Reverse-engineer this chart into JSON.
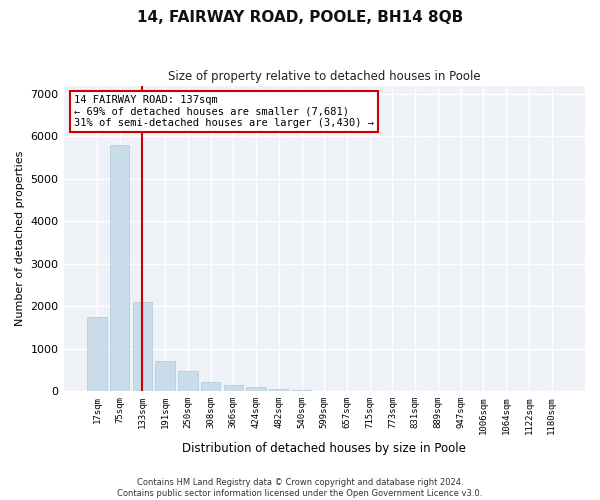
{
  "title": "14, FAIRWAY ROAD, POOLE, BH14 8QB",
  "subtitle": "Size of property relative to detached houses in Poole",
  "xlabel": "Distribution of detached houses by size in Poole",
  "ylabel": "Number of detached properties",
  "categories": [
    "17sqm",
    "75sqm",
    "133sqm",
    "191sqm",
    "250sqm",
    "308sqm",
    "366sqm",
    "424sqm",
    "482sqm",
    "540sqm",
    "599sqm",
    "657sqm",
    "715sqm",
    "773sqm",
    "831sqm",
    "889sqm",
    "947sqm",
    "1006sqm",
    "1064sqm",
    "1122sqm",
    "1180sqm"
  ],
  "values": [
    1750,
    5800,
    2100,
    700,
    480,
    220,
    150,
    100,
    60,
    30,
    10,
    5,
    3,
    2,
    1,
    1,
    0,
    0,
    0,
    0,
    0
  ],
  "bar_color": "#c9dcea",
  "bar_edge_color": "#aec8dc",
  "highlight_index": 2,
  "highlight_line_color": "#cc0000",
  "annotation_text": "14 FAIRWAY ROAD: 137sqm\n← 69% of detached houses are smaller (7,681)\n31% of semi-detached houses are larger (3,430) →",
  "annotation_box_color": "#ffffff",
  "annotation_box_edge": "#cc0000",
  "bg_color": "#eef2f7",
  "grid_color": "#ffffff",
  "ylim": [
    0,
    7200
  ],
  "yticks": [
    0,
    1000,
    2000,
    3000,
    4000,
    5000,
    6000,
    7000
  ],
  "footer_line1": "Contains HM Land Registry data © Crown copyright and database right 2024.",
  "footer_line2": "Contains public sector information licensed under the Open Government Licence v3.0."
}
